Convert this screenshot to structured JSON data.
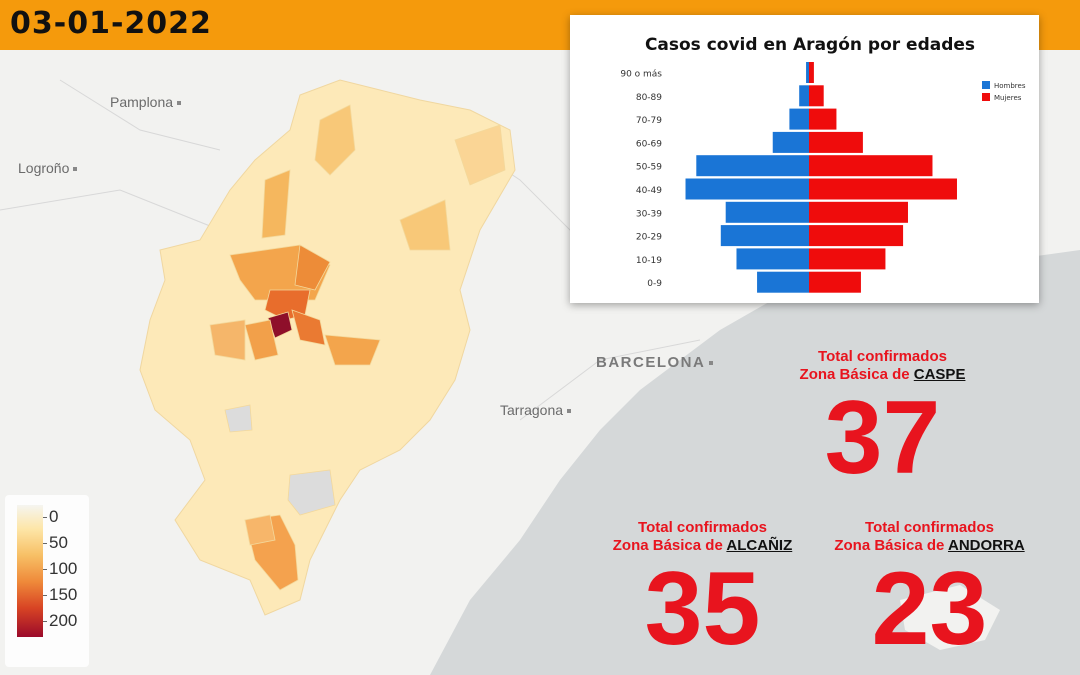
{
  "date": "03-01-2022",
  "map": {
    "cities": [
      {
        "name": "Pamplona"
      },
      {
        "name": "Logroño"
      },
      {
        "name": "BARCELONA"
      },
      {
        "name": "Tarragona"
      }
    ],
    "legend": {
      "labels": [
        "0",
        "50",
        "100",
        "150",
        "200"
      ],
      "colors": [
        "#f5f5f0",
        "#fde6a8",
        "#f7c066",
        "#ef8a3a",
        "#d84424",
        "#9b0a2a"
      ]
    },
    "colors": {
      "header": "#f59a0c",
      "sea": "#d5d8d9",
      "land": "#f2f2f0",
      "highlight": "#e8141e"
    }
  },
  "stats": [
    {
      "label": "Total confirmados",
      "prefix": "Zona Básica de ",
      "zone": "CASPE",
      "value": "37"
    },
    {
      "label": "Total confirmados",
      "prefix": "Zona Básica de ",
      "zone": "ALCAÑIZ",
      "value": "35"
    },
    {
      "label": "Total confirmados",
      "prefix": "Zona Básica de ",
      "zone": "ANDORRA",
      "value": "23"
    }
  ],
  "chart_data": {
    "type": "bar",
    "orientation": "horizontal-pyramid",
    "title": "Casos covid en Aragón por edades",
    "categories": [
      "90 o más",
      "80-89",
      "70-79",
      "60-69",
      "50-59",
      "40-49",
      "30-39",
      "20-29",
      "10-19",
      "0-9"
    ],
    "series": [
      {
        "name": "Hombres",
        "color": "#1a75d6",
        "values": [
          3,
          10,
          20,
          37,
          115,
          126,
          85,
          90,
          74,
          53
        ]
      },
      {
        "name": "Mujeres",
        "color": "#ef0c0c",
        "values": [
          5,
          15,
          28,
          55,
          126,
          151,
          101,
          96,
          78,
          53
        ]
      }
    ],
    "xlim": [
      -160,
      160
    ],
    "legend_position": "top-right",
    "grid": false
  }
}
